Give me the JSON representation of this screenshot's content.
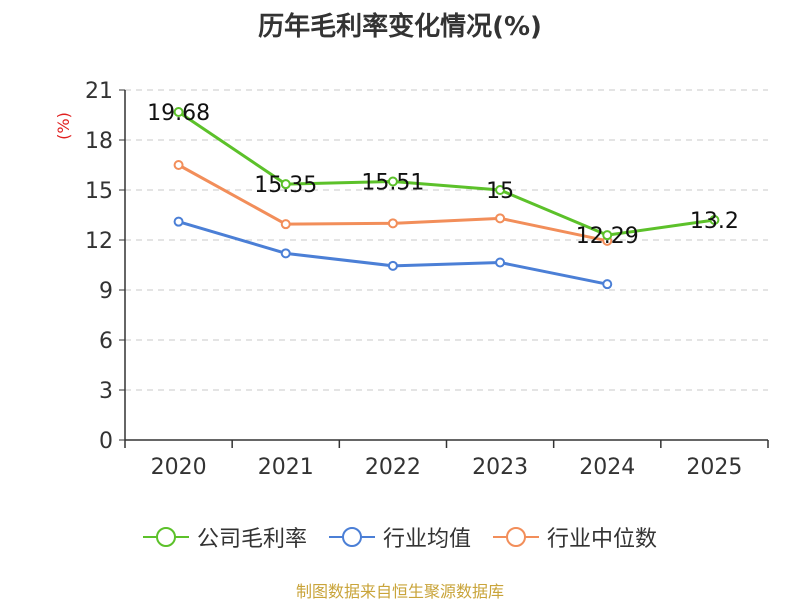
{
  "chart_data": {
    "type": "line",
    "title": "历年毛利率变化情况(%)",
    "ylabel": "(%)",
    "categories": [
      "2020",
      "2021",
      "2022",
      "2023",
      "2024",
      "2025"
    ],
    "yticks": [
      0,
      3,
      6,
      9,
      12,
      15,
      18,
      21
    ],
    "ylim": [
      0,
      21
    ],
    "grid": true,
    "legend_position": "bottom",
    "series": [
      {
        "name": "公司毛利率",
        "color": "#5cc12a",
        "values": [
          19.68,
          15.35,
          15.51,
          15,
          12.29,
          13.2
        ],
        "labels": [
          "19.68",
          "15.35",
          "15.51",
          "15",
          "12.29",
          "13.2"
        ]
      },
      {
        "name": "行业均值",
        "color": "#4b7fd6",
        "values": [
          13.1,
          11.2,
          10.45,
          10.65,
          9.35,
          null
        ]
      },
      {
        "name": "行业中位数",
        "color": "#f28e5a",
        "values": [
          16.5,
          12.95,
          13.0,
          13.3,
          11.95,
          null
        ]
      }
    ]
  },
  "source": "制图数据来自恒生聚源数据库"
}
